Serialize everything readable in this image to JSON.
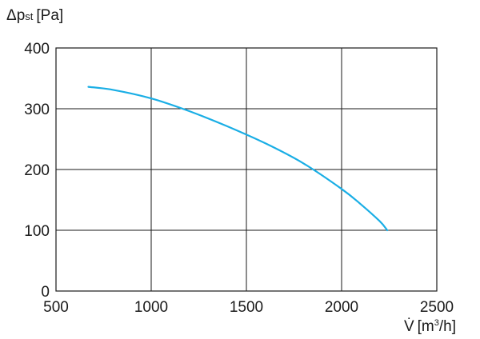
{
  "chart_data": {
    "type": "line",
    "ylabel": {
      "symbol": "Δp",
      "subscript": "st",
      "unit": "[Pa]"
    },
    "xlabel": {
      "symbol": "V̇",
      "unit_prefix": "[m",
      "unit_sup": "3",
      "unit_suffix": "/h]"
    },
    "xlim": [
      500,
      2500
    ],
    "ylim": [
      0,
      400
    ],
    "xticks": [
      500,
      1000,
      1500,
      2000,
      2500
    ],
    "yticks": [
      0,
      100,
      200,
      300,
      400
    ],
    "grid": true,
    "series": [
      {
        "color": "#1aaee5",
        "x": [
          670,
          800,
          1000,
          1200,
          1400,
          1600,
          1800,
          2000,
          2100,
          2200,
          2240
        ],
        "y": [
          336,
          331,
          317,
          296,
          271,
          243,
          210,
          168,
          143,
          115,
          100
        ]
      }
    ]
  }
}
